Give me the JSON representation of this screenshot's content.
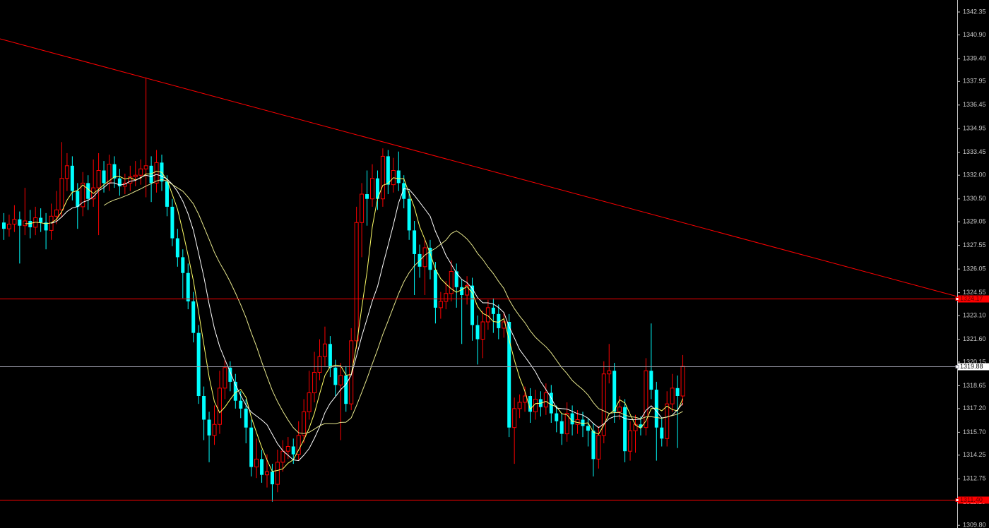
{
  "chart_data": {
    "type": "candlestick",
    "ylim": [
      1309.63,
      1343.11
    ],
    "yticks": [
      1342.35,
      {
        "value": 1340.9,
        "label": "1340.90"
      },
      {
        "value": 1339.4,
        "label": "1339.40"
      },
      1337.95,
      1336.45,
      1334.95,
      1333.45,
      {
        "value": 1332,
        "label": "1332.00"
      },
      {
        "value": 1330.5,
        "label": "1330.50"
      },
      1329.05,
      1327.55,
      1326.05,
      1324.55,
      {
        "value": 1323.1,
        "label": "1323.10"
      },
      {
        "value": 1321.6,
        "label": "1321.60"
      },
      1320.15,
      1318.65,
      {
        "value": 1317.2,
        "label": "1317.20"
      },
      {
        "value": 1315.7,
        "label": "1315.70"
      },
      1314.25,
      1312.75,
      1311.25,
      {
        "value": 1309.8,
        "label": "1309.80"
      }
    ],
    "up_color": "#ff0000",
    "down_color": "#00ffff",
    "ma_colors": [
      "#ffff66",
      "#ffffff",
      "#e6e68c"
    ],
    "trendline": {
      "values": [
        1340.65,
        1324.31
      ],
      "color": "#ff0000"
    },
    "price_lines": [
      {
        "value": 1324.17,
        "color": "#ff0000"
      },
      {
        "value": 1319.88,
        "color": "#9a9aa8"
      },
      {
        "value": 1311.4,
        "label": "1311.40",
        "color": "#ff0000"
      }
    ],
    "ohlc": [
      [
        1329.0,
        1329.6,
        1327.9,
        1328.6
      ],
      [
        1328.6,
        1329.5,
        1328.1,
        1328.9
      ],
      [
        1328.9,
        1330.1,
        1328.4,
        1329.2
      ],
      [
        1329.2,
        1329.7,
        1326.4,
        1328.8
      ],
      [
        1328.8,
        1331.2,
        1328.2,
        1329.1
      ],
      [
        1329.1,
        1329.8,
        1328.0,
        1328.7
      ],
      [
        1328.7,
        1330.0,
        1328.2,
        1329.3
      ],
      [
        1329.3,
        1329.9,
        1328.4,
        1329.0
      ],
      [
        1329.0,
        1329.6,
        1327.3,
        1328.5
      ],
      [
        1328.5,
        1330.2,
        1327.9,
        1329.4
      ],
      [
        1329.4,
        1331.0,
        1328.9,
        1329.8
      ],
      [
        1329.8,
        1334.1,
        1329.3,
        1331.8
      ],
      [
        1331.8,
        1333.4,
        1331.0,
        1332.6
      ],
      [
        1332.6,
        1333.2,
        1330.4,
        1331.0
      ],
      [
        1331.0,
        1331.5,
        1328.6,
        1330.0
      ],
      [
        1330.0,
        1332.2,
        1329.4,
        1331.5
      ],
      [
        1331.5,
        1332.0,
        1329.8,
        1330.5
      ],
      [
        1330.5,
        1333.0,
        1330.0,
        1331.2
      ],
      [
        1331.2,
        1333.4,
        1328.2,
        1332.3
      ],
      [
        1332.3,
        1332.9,
        1330.9,
        1331.5
      ],
      [
        1331.5,
        1333.3,
        1331.0,
        1332.7
      ],
      [
        1332.7,
        1333.2,
        1331.2,
        1331.8
      ],
      [
        1331.8,
        1332.4,
        1330.7,
        1331.3
      ],
      [
        1331.3,
        1332.1,
        1330.8,
        1331.5
      ],
      [
        1331.5,
        1332.6,
        1331.0,
        1331.9
      ],
      [
        1331.9,
        1332.9,
        1331.3,
        1332.0
      ],
      [
        1332.0,
        1333.0,
        1331.4,
        1332.4
      ],
      [
        1332.4,
        1338.2,
        1330.6,
        1332.6
      ],
      [
        1332.6,
        1333.2,
        1330.3,
        1331.5
      ],
      [
        1331.5,
        1333.6,
        1330.9,
        1332.8
      ],
      [
        1332.8,
        1333.3,
        1331.0,
        1331.6
      ],
      [
        1331.6,
        1332.0,
        1329.4,
        1330.0
      ],
      [
        1330.0,
        1330.5,
        1327.5,
        1328.0
      ],
      [
        1328.0,
        1328.6,
        1326.2,
        1326.8
      ],
      [
        1326.8,
        1327.3,
        1324.2,
        1325.8
      ],
      [
        1325.8,
        1326.4,
        1323.5,
        1324.0
      ],
      [
        1324.0,
        1324.6,
        1321.4,
        1322.0
      ],
      [
        1322.0,
        1322.5,
        1317.5,
        1318.0
      ],
      [
        1318.0,
        1318.6,
        1315.2,
        1316.5
      ],
      [
        1316.5,
        1317.0,
        1313.8,
        1315.5
      ],
      [
        1315.5,
        1317.4,
        1314.9,
        1316.2
      ],
      [
        1316.2,
        1319.6,
        1315.6,
        1318.5
      ],
      [
        1318.5,
        1320.3,
        1317.8,
        1319.8
      ],
      [
        1319.8,
        1320.2,
        1318.3,
        1318.9
      ],
      [
        1318.9,
        1319.4,
        1317.2,
        1317.7
      ],
      [
        1317.7,
        1318.3,
        1316.6,
        1317.2
      ],
      [
        1317.2,
        1317.8,
        1315.0,
        1316.0
      ],
      [
        1316.0,
        1316.5,
        1312.9,
        1313.5
      ],
      [
        1313.5,
        1315.3,
        1312.8,
        1314.0
      ],
      [
        1314.0,
        1314.6,
        1312.5,
        1313.0
      ],
      [
        1313.0,
        1314.3,
        1312.2,
        1313.2
      ],
      [
        1313.2,
        1313.7,
        1311.3,
        1312.4
      ],
      [
        1312.4,
        1314.6,
        1311.9,
        1313.8
      ],
      [
        1313.8,
        1315.2,
        1313.2,
        1314.5
      ],
      [
        1314.5,
        1315.4,
        1314.0,
        1314.8
      ],
      [
        1314.8,
        1315.3,
        1313.7,
        1314.3
      ],
      [
        1314.3,
        1316.4,
        1313.9,
        1315.5
      ],
      [
        1315.5,
        1317.8,
        1315.0,
        1317.0
      ],
      [
        1317.0,
        1319.6,
        1316.5,
        1318.2
      ],
      [
        1318.2,
        1320.8,
        1317.6,
        1319.5
      ],
      [
        1319.5,
        1321.6,
        1319.0,
        1320.5
      ],
      [
        1320.5,
        1322.4,
        1319.9,
        1321.3
      ],
      [
        1321.3,
        1321.8,
        1319.2,
        1319.8
      ],
      [
        1319.8,
        1320.3,
        1318.0,
        1318.7
      ],
      [
        1318.7,
        1320.1,
        1315.2,
        1319.3
      ],
      [
        1319.3,
        1319.9,
        1317.0,
        1317.5
      ],
      [
        1317.5,
        1322.3,
        1317.1,
        1321.5
      ],
      [
        1321.5,
        1330.0,
        1321.0,
        1329.0
      ],
      [
        1329.0,
        1331.5,
        1326.8,
        1330.8
      ],
      [
        1330.8,
        1332.3,
        1328.8,
        1330.5
      ],
      [
        1330.5,
        1332.7,
        1330.0,
        1331.8
      ],
      [
        1331.8,
        1332.3,
        1329.8,
        1330.5
      ],
      [
        1330.5,
        1333.7,
        1330.0,
        1333.2
      ],
      [
        1333.2,
        1333.6,
        1330.8,
        1331.4
      ],
      [
        1331.4,
        1333.1,
        1330.9,
        1332.3
      ],
      [
        1332.3,
        1333.5,
        1331.0,
        1331.5
      ],
      [
        1331.5,
        1332.0,
        1329.9,
        1330.5
      ],
      [
        1330.5,
        1331.0,
        1327.9,
        1328.5
      ],
      [
        1328.5,
        1329.1,
        1324.4,
        1327.0
      ],
      [
        1327.0,
        1327.6,
        1325.5,
        1326.2
      ],
      [
        1326.2,
        1328.0,
        1324.4,
        1327.4
      ],
      [
        1327.4,
        1327.9,
        1325.4,
        1326.0
      ],
      [
        1326.0,
        1326.5,
        1322.6,
        1323.6
      ],
      [
        1323.6,
        1324.6,
        1322.9,
        1324.0
      ],
      [
        1324.0,
        1325.3,
        1323.5,
        1324.5
      ],
      [
        1324.5,
        1326.6,
        1324.0,
        1325.9
      ],
      [
        1325.9,
        1326.4,
        1323.6,
        1324.9
      ],
      [
        1324.9,
        1325.4,
        1321.3,
        1324.4
      ],
      [
        1324.4,
        1325.6,
        1323.8,
        1325.0
      ],
      [
        1325.0,
        1325.5,
        1321.5,
        1322.5
      ],
      [
        1322.5,
        1323.1,
        1320.0,
        1321.6
      ],
      [
        1321.6,
        1323.4,
        1320.4,
        1322.7
      ],
      [
        1322.7,
        1324.1,
        1322.2,
        1323.6
      ],
      [
        1323.6,
        1324.2,
        1322.0,
        1323.2
      ],
      [
        1323.2,
        1323.8,
        1321.6,
        1322.3
      ],
      [
        1322.3,
        1323.3,
        1321.7,
        1322.7
      ],
      [
        1322.7,
        1323.2,
        1315.4,
        1316.0
      ],
      [
        1316.0,
        1317.9,
        1313.7,
        1317.2
      ],
      [
        1317.2,
        1318.1,
        1316.6,
        1317.6
      ],
      [
        1317.6,
        1318.6,
        1317.0,
        1318.0
      ],
      [
        1318.0,
        1318.5,
        1316.3,
        1317.0
      ],
      [
        1317.0,
        1318.4,
        1316.5,
        1317.8
      ],
      [
        1317.8,
        1318.3,
        1316.7,
        1317.3
      ],
      [
        1317.3,
        1318.8,
        1316.8,
        1318.2
      ],
      [
        1318.2,
        1318.7,
        1316.3,
        1316.9
      ],
      [
        1316.9,
        1317.4,
        1315.7,
        1316.4
      ],
      [
        1316.4,
        1316.9,
        1314.9,
        1315.6
      ],
      [
        1315.6,
        1317.6,
        1315.1,
        1316.9
      ],
      [
        1316.9,
        1317.4,
        1315.5,
        1316.2
      ],
      [
        1316.2,
        1317.1,
        1315.6,
        1316.5
      ],
      [
        1316.5,
        1317.0,
        1315.4,
        1316.1
      ],
      [
        1316.1,
        1316.6,
        1314.8,
        1315.8
      ],
      [
        1315.8,
        1316.3,
        1312.9,
        1314.0
      ],
      [
        1314.0,
        1316.1,
        1313.4,
        1315.5
      ],
      [
        1315.5,
        1320.2,
        1315.0,
        1319.4
      ],
      [
        1319.4,
        1321.3,
        1318.8,
        1319.6
      ],
      [
        1319.6,
        1320.1,
        1316.3,
        1317.0
      ],
      [
        1317.0,
        1318.0,
        1316.5,
        1317.3
      ],
      [
        1317.3,
        1317.8,
        1313.8,
        1314.5
      ],
      [
        1314.5,
        1316.4,
        1313.9,
        1315.8
      ],
      [
        1315.8,
        1316.8,
        1314.4,
        1316.2
      ],
      [
        1316.2,
        1316.7,
        1315.5,
        1316.0
      ],
      [
        1316.0,
        1320.4,
        1315.5,
        1319.6
      ],
      [
        1319.6,
        1322.6,
        1317.8,
        1318.4
      ],
      [
        1318.4,
        1318.9,
        1313.9,
        1316.0
      ],
      [
        1316.0,
        1316.6,
        1314.8,
        1315.3
      ],
      [
        1315.3,
        1318.3,
        1314.8,
        1317.5
      ],
      [
        1317.5,
        1319.4,
        1317.0,
        1318.5
      ],
      [
        1318.5,
        1319.3,
        1314.7,
        1318.0
      ],
      [
        1318.0,
        1320.6,
        1317.4,
        1319.88
      ]
    ]
  }
}
